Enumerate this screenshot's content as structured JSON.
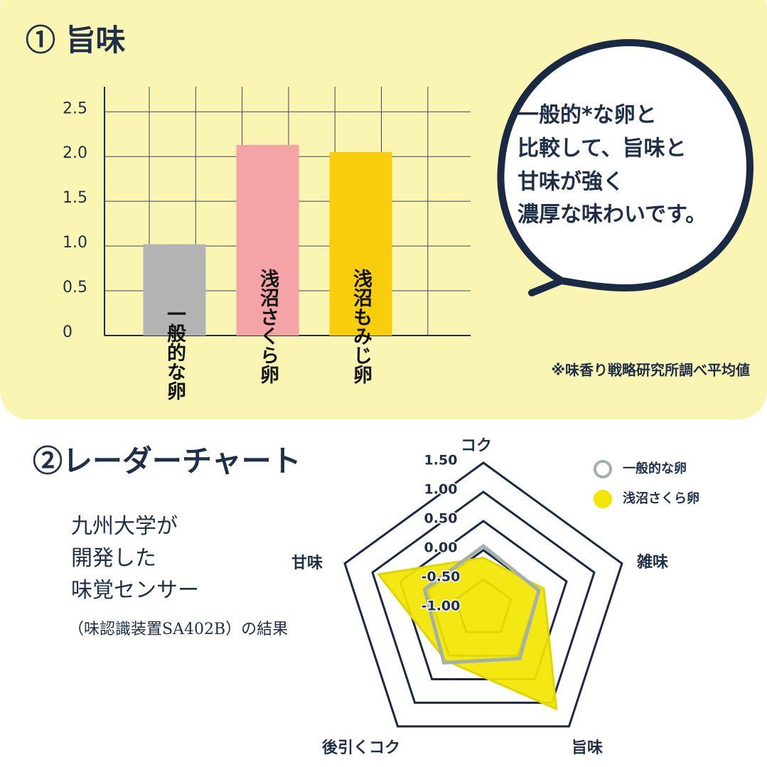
{
  "chart_data": [
    {
      "type": "bar",
      "title": "① 旨味",
      "categories": [
        "一般的な卵",
        "浅沼さくら卵",
        "浅沼もみじ卵"
      ],
      "values": [
        1.02,
        2.13,
        2.05
      ],
      "colors": [
        "#b3b3b3",
        "#f4a3a6",
        "#f7cd0c"
      ],
      "ylim": [
        0,
        2.78
      ],
      "yticks": [
        0,
        0.5,
        {
          "value": 1,
          "label": "1.0"
        },
        1.5,
        {
          "value": 2,
          "label": "2.0"
        },
        2.5
      ],
      "grid": true,
      "note": "※味香り戦略研究所調べ平均値"
    },
    {
      "type": "radar",
      "title": "②レーダーチャート",
      "axes": [
        "コク",
        "雑味",
        "旨味",
        "後引くコク",
        "甘味"
      ],
      "rlim": [
        -1,
        1.5
      ],
      "rticks": [
        {
          "value": 1.5,
          "label": "1.50"
        },
        {
          "value": 1,
          "label": "1.00"
        },
        {
          "value": 0.5,
          "label": "0.50"
        },
        {
          "value": 0,
          "label": "0.00"
        },
        {
          "value": -0.5,
          "label": "-0.50"
        },
        {
          "value": -1,
          "label": "-1.00"
        }
      ],
      "series": [
        {
          "name": "一般的な卵",
          "color": "#a3b0ac",
          "values": [
            0.07,
            0.0,
            0.06,
            0.15,
            0.06
          ]
        },
        {
          "name": "浅沼さくら卵",
          "color": "#f2e600",
          "values": [
            -0.13,
            0.09,
            1.13,
            0.1,
            0.89
          ]
        }
      ]
    }
  ],
  "bubble": {
    "lines": [
      "一般的*な卵と",
      "比較して、旨味と",
      "甘味が強く",
      "濃厚な味わいです。"
    ]
  },
  "description": {
    "lines": [
      "九州大学が",
      "開発した",
      "味覚センサー"
    ],
    "small": "（味認識装置SA402B）の結果"
  }
}
